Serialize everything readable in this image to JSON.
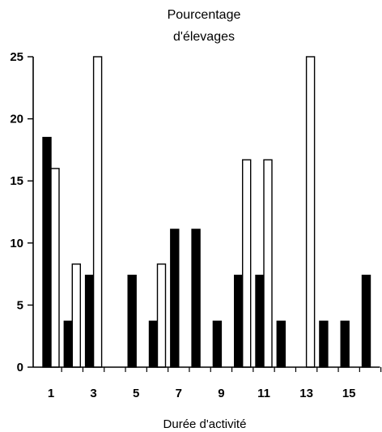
{
  "chart_data": {
    "type": "bar",
    "title_line1": "Pourcentage",
    "title_line2": "d'élevages",
    "xlabel": "Durée d'activité",
    "ylabel": "",
    "ylim": [
      0,
      25
    ],
    "yticks": [
      0,
      5,
      10,
      15,
      20,
      25
    ],
    "x": [
      1,
      2,
      3,
      4,
      5,
      6,
      7,
      8,
      9,
      10,
      11,
      12,
      13,
      14,
      15,
      16
    ],
    "xtick_labels": [
      "1",
      "3",
      "5",
      "7",
      "9",
      "11",
      "13",
      "15"
    ],
    "xtick_positions": [
      1,
      3,
      5,
      7,
      9,
      11,
      13,
      15
    ],
    "grid": false,
    "legend": "none",
    "series": [
      {
        "style": "filled",
        "color": "#000000",
        "values": [
          18.5,
          3.7,
          7.4,
          0,
          7.4,
          3.7,
          11.1,
          11.1,
          3.7,
          7.4,
          7.4,
          3.7,
          0,
          3.7,
          3.7,
          7.4
        ]
      },
      {
        "style": "outline",
        "color": "#ffffff",
        "values": [
          16.0,
          8.3,
          25.0,
          0,
          0,
          8.3,
          0,
          0,
          0,
          16.7,
          16.7,
          0,
          25.0,
          0,
          0,
          0
        ]
      }
    ]
  }
}
